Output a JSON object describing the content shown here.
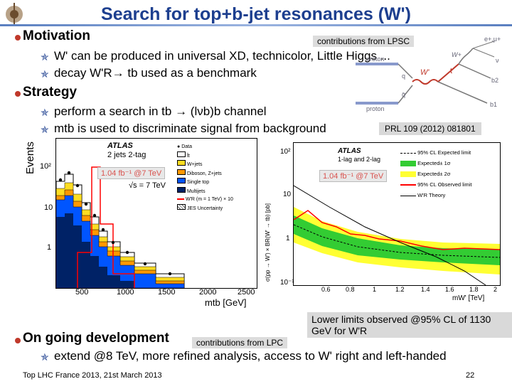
{
  "title": "Search for top+b-jet resonances (W')",
  "motivation": {
    "heading": "Motivation",
    "contrib_tag": "contributions from LPSC",
    "items": [
      "W' can be produced in universal XD, technicolor, Little Higgs ...",
      "decay W'R→ tb used as a benchmark"
    ]
  },
  "strategy": {
    "heading": "Strategy",
    "items": [
      "perform a search in tb → (lνb)b channel",
      "mtb is used to discriminate signal from background"
    ]
  },
  "prl_ref": "PRL 109 (2012) 081801",
  "feynman": {
    "labels": [
      "proton",
      "proton",
      "W'",
      "t",
      "e+,μ+",
      "ν",
      "b2",
      "b1",
      "q",
      "q̄",
      "W+"
    ]
  },
  "left_plot": {
    "ylabel": "Events",
    "atlas": "ATLAS",
    "selection": "2 jets 2-tag",
    "lumi": "1.04 fb⁻¹ @7 TeV",
    "sqrts": "√s = 7 TeV",
    "legend": [
      "Data",
      "t̄t",
      "W+jets",
      "Diboson, Z+jets",
      "Single top",
      "Multijets",
      "W'R (m = 1 TeV) × 10",
      "JES Uncertainty"
    ],
    "yticks": [
      "10²",
      "10",
      "1"
    ],
    "xticks": [
      "500",
      "1000",
      "1500",
      "2000",
      "2500"
    ],
    "xlabel": "mtb [GeV]"
  },
  "right_plot": {
    "ylabel": "σ(pp → W') × BR(W' → tb) [pb]",
    "atlas": "ATLAS",
    "selection": "1-lag and 2-lag",
    "lumi": "1.04 fb⁻¹ @7 TeV",
    "legend": [
      "95% CL Expected limit",
      "Expected± 1σ",
      "Expected± 2σ",
      "95% CL Observed limit",
      "W'R Theory"
    ],
    "yticks": [
      "10²",
      "10",
      "1",
      "10⁻¹"
    ],
    "xticks": [
      "0.6",
      "0.8",
      "1",
      "1.2",
      "1.4",
      "1.6",
      "1.8",
      "2"
    ],
    "xlabel": "mW' [TeV]"
  },
  "lower_limit": "Lower limits observed @95% CL of 1130 GeV for W'R",
  "ongoing": {
    "heading": "On going development",
    "contrib_tag": "contributions from LPC",
    "items": [
      "extend @8 TeV, more refined analysis, access to W' right and left-handed"
    ]
  },
  "footer": {
    "left": "Top LHC France 2013, 21st March 2013",
    "page": "22"
  },
  "colors": {
    "title": "#1d3f8f",
    "bullet": "#c0392b",
    "ttbar": "#ffffff",
    "wjets": "#ffdd22",
    "diboson": "#ff9900",
    "singletop": "#0055ff",
    "multijets": "#002266",
    "signal": "#ff0000",
    "band1": "#33cc33",
    "band2": "#ffff33"
  }
}
